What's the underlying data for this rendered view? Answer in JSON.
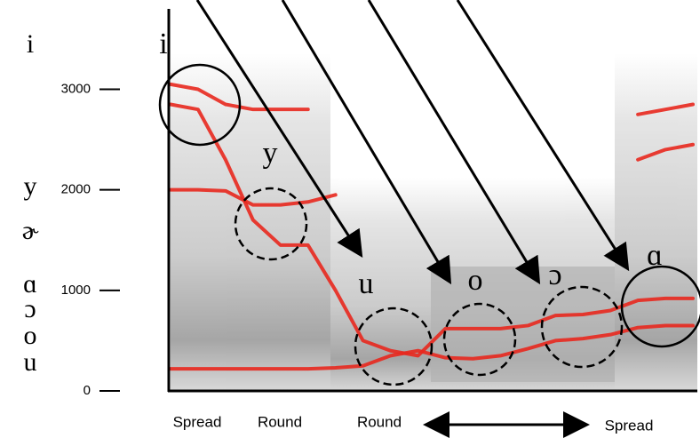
{
  "chart_data": {
    "type": "spectrogram",
    "ylim": [
      0,
      3800
    ],
    "yticks": [
      0,
      1000,
      2000,
      3000
    ],
    "vowel_labels": [
      "i",
      "y",
      "u",
      "o",
      "ɔ",
      "ɑ"
    ],
    "axis_vowels": [
      "i",
      "y",
      "ɚ",
      "ɑ",
      "ɔ",
      "o",
      "u"
    ],
    "lip_labels": [
      "Spread",
      "Round",
      "Round",
      "Spread"
    ],
    "series": [
      {
        "color": "#e8281e",
        "values": [
          220,
          220,
          220,
          220,
          220,
          220,
          230,
          250,
          350,
          400,
          330,
          320,
          350,
          420,
          500,
          520,
          560,
          630,
          650,
          650
        ]
      },
      {
        "color": "#e8281e",
        "values": [
          2850,
          2800,
          2300,
          1700,
          1450,
          1450,
          1000,
          500,
          400,
          350,
          620,
          620,
          620,
          650,
          750,
          760,
          800,
          900,
          920,
          920
        ]
      },
      {
        "color": "#e8281e",
        "values": [
          3050,
          3000,
          2850,
          2800,
          2800,
          2800,
          null,
          null,
          null,
          null,
          null,
          null,
          null,
          null,
          null,
          null,
          null,
          2750,
          2800,
          2850
        ]
      },
      {
        "color": "#e8281e",
        "values": [
          2000,
          2000,
          1990,
          1850,
          1850,
          1880,
          1950,
          null,
          null,
          null,
          null,
          null,
          null,
          null,
          null,
          null,
          null,
          2300,
          2400,
          2450
        ]
      }
    ]
  }
}
